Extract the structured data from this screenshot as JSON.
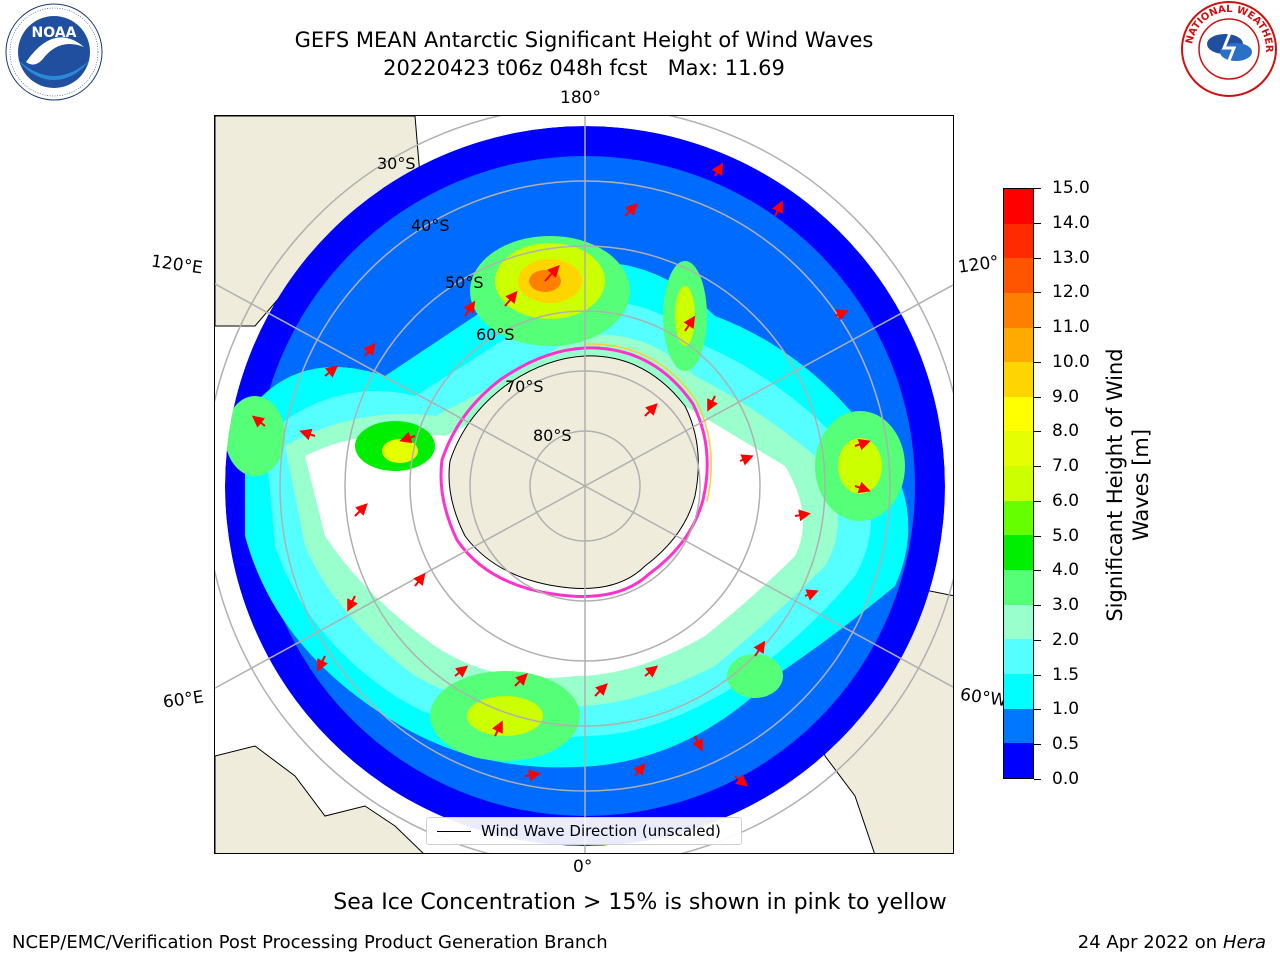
{
  "title": {
    "line1": "GEFS MEAN Antarctic Significant Height of Wind Waves",
    "line2": "20220423 t06z 048h fcst   Max: 11.69"
  },
  "map": {
    "projection": "south-polar-stereographic",
    "longitude_labels": {
      "top": "180°",
      "upper_left": "120°E",
      "upper_right": "120°",
      "lower_left": "60°E",
      "lower_right": "60°W",
      "bottom": "0°"
    },
    "latitude_labels": [
      "30°S",
      "40°S",
      "50°S",
      "60°S",
      "70°S",
      "80°S"
    ],
    "colors": {
      "land": "#efecdc",
      "ice_edge_pink": "#ff33cc",
      "ice_edge_yellow": "#ffcc33",
      "gridlines": "#b0b0b0",
      "wave_arrows": "#ff0000"
    }
  },
  "legend": {
    "entry_label": "Wind Wave Direction (unscaled)",
    "icon": "black-line-icon"
  },
  "colorbar": {
    "title_line1": "Significant Height of Wind",
    "title_line2": "Waves [m]",
    "tick_labels": [
      "15.0",
      "14.0",
      "13.0",
      "12.0",
      "11.0",
      "10.0",
      "9.0",
      "8.0",
      "7.0",
      "6.0",
      "5.0",
      "4.0",
      "3.0",
      "2.0",
      "1.5",
      "1.0",
      "0.5",
      "0.0"
    ],
    "segment_colors_top_to_bottom": [
      "#ff0000",
      "#ff2a00",
      "#ff5500",
      "#ff8000",
      "#ffaa00",
      "#ffd500",
      "#ffff00",
      "#e6ff00",
      "#ccff00",
      "#66ff00",
      "#00ee00",
      "#55ff77",
      "#99ffcc",
      "#55ffff",
      "#00ffff",
      "#0077ff",
      "#0000ff"
    ]
  },
  "caption": "Sea Ice Concentration > 15% is shown in pink to yellow",
  "footer": {
    "left": "NCEP/EMC/Verification Post Processing Product Generation Branch",
    "right_date": "24 Apr 2022 on ",
    "right_host": "Hera"
  },
  "logos": {
    "noaa": "NOAA",
    "nws": "NATIONAL WEATHER SERVICE"
  }
}
